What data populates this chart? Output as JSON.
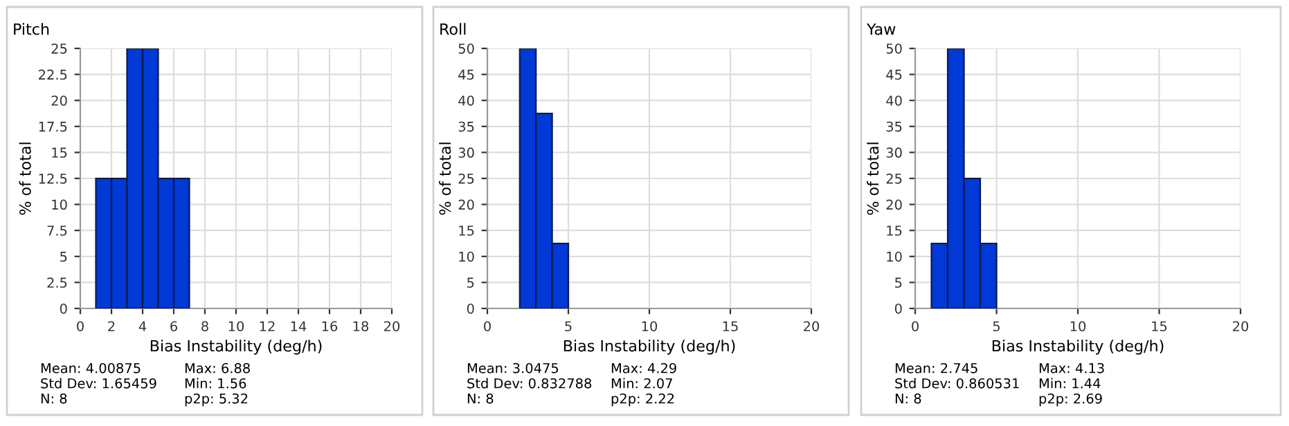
{
  "chart_data": [
    {
      "type": "histogram",
      "title": "Pitch",
      "xlabel": "Bias Instability (deg/h)",
      "ylabel": "% of total",
      "bins": [
        1,
        2,
        3,
        4,
        5,
        6,
        7
      ],
      "values": [
        12.5,
        12.5,
        25,
        25,
        12.5,
        12.5
      ],
      "color": "#0039d6",
      "xlim": [
        0,
        20
      ],
      "xticks": [
        0,
        2,
        4,
        6,
        8,
        10,
        12,
        14,
        16,
        18,
        20
      ],
      "ylim": [
        0,
        25
      ],
      "yticks": [
        0,
        2.5,
        5,
        7.5,
        10,
        12.5,
        15,
        17.5,
        20,
        22.5,
        25
      ],
      "grid": true,
      "annotations": [
        "Mean: 4.00875",
        "Std Dev: 1.65459",
        "N: 8",
        "Max: 6.88",
        "Min: 1.56",
        "p2p: 5.32"
      ]
    },
    {
      "type": "histogram",
      "title": "Roll",
      "xlabel": "Bias Instability (deg/h)",
      "ylabel": "% of total",
      "bins": [
        2,
        3,
        4,
        5
      ],
      "values": [
        50,
        37.5,
        12.5
      ],
      "color": "#0039d6",
      "xlim": [
        0,
        20
      ],
      "xticks": [
        0,
        5,
        10,
        15,
        20
      ],
      "ylim": [
        0,
        50
      ],
      "yticks": [
        0,
        5,
        10,
        15,
        20,
        25,
        30,
        35,
        40,
        45,
        50
      ],
      "grid": true,
      "annotations": [
        "Mean: 3.0475",
        "Std Dev: 0.832788",
        "N: 8",
        "Max: 4.29",
        "Min: 2.07",
        "p2p: 2.22"
      ]
    },
    {
      "type": "histogram",
      "title": "Yaw",
      "xlabel": "Bias Instability (deg/h)",
      "ylabel": "% of total",
      "bins": [
        1,
        2,
        3,
        4,
        5
      ],
      "values": [
        12.5,
        50,
        25,
        12.5
      ],
      "color": "#0039d6",
      "xlim": [
        0,
        20
      ],
      "xticks": [
        0,
        5,
        10,
        15,
        20
      ],
      "ylim": [
        0,
        50
      ],
      "yticks": [
        0,
        5,
        10,
        15,
        20,
        25,
        30,
        35,
        40,
        45,
        50
      ],
      "grid": true,
      "annotations": [
        "Mean: 2.745",
        "Std Dev: 0.860531",
        "N: 8",
        "Max: 4.13",
        "Min: 1.44",
        "p2p: 2.69"
      ]
    }
  ]
}
